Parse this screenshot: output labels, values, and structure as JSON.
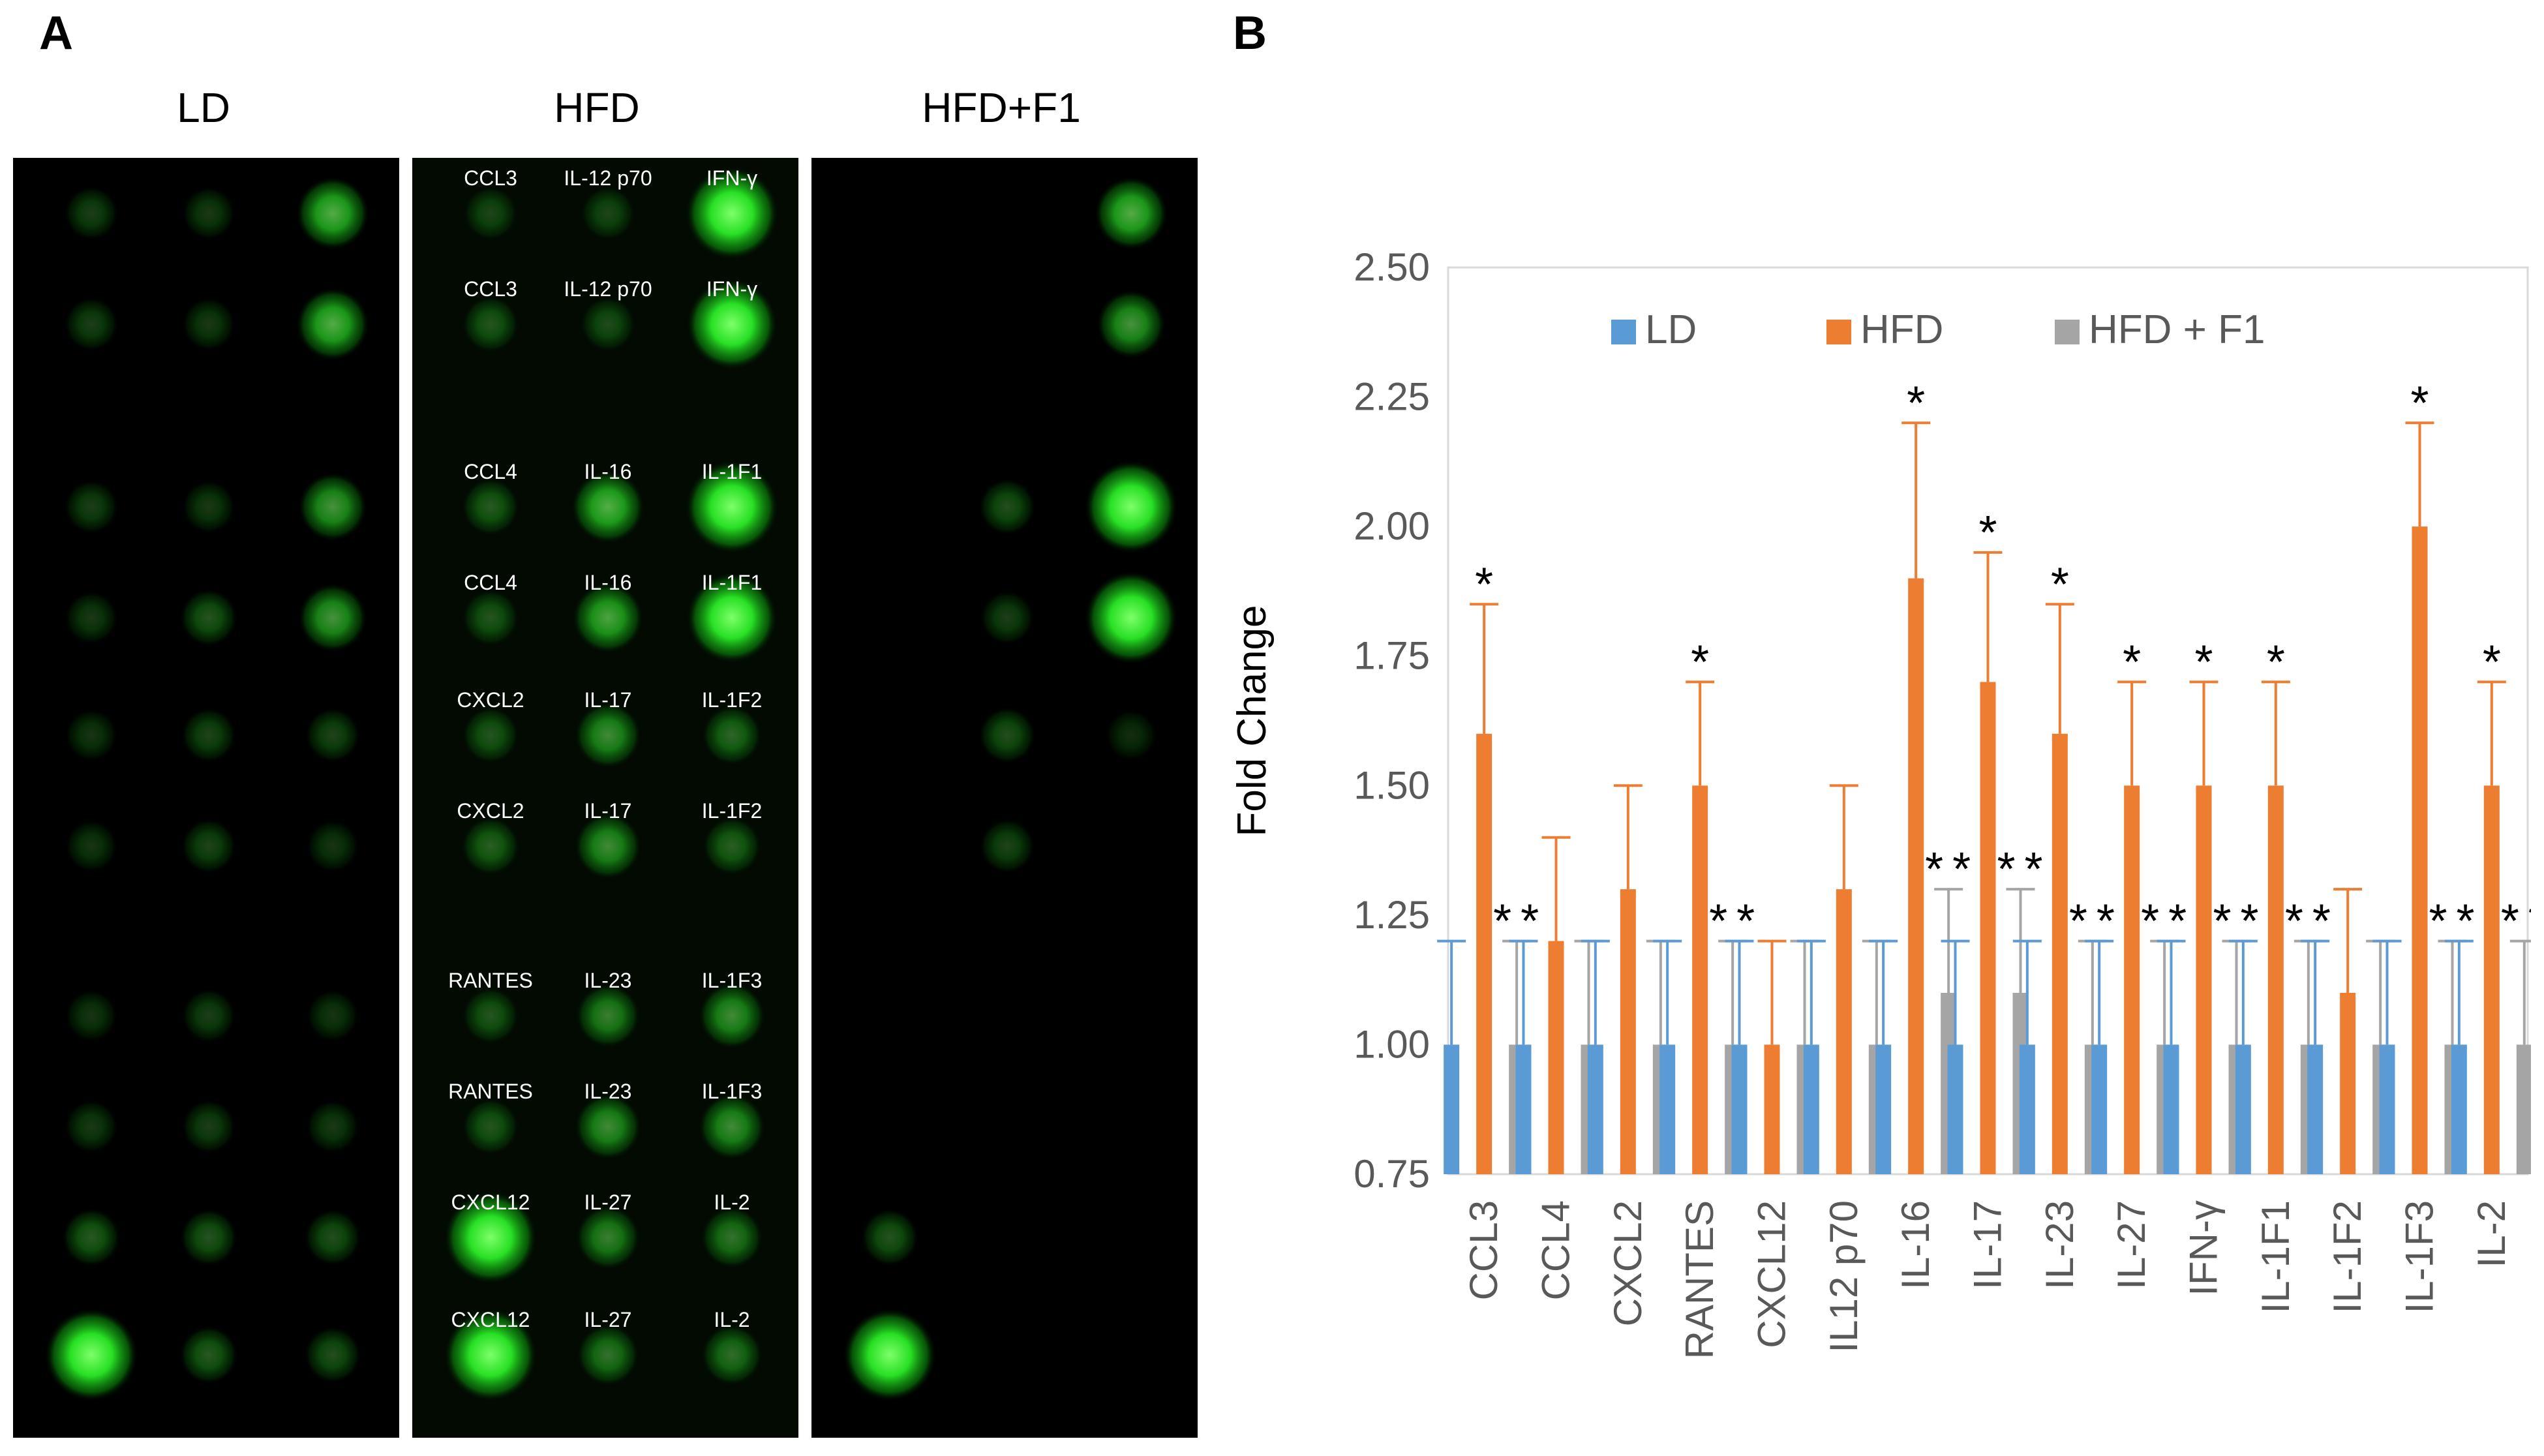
{
  "figure": {
    "panel_a_letter": "A",
    "panel_b_letter": "B"
  },
  "blots": [
    {
      "title": "LD",
      "dots": [
        [
          0.12,
          0.1,
          0.55
        ],
        [
          0.12,
          0.1,
          0.55
        ],
        [
          0.12,
          0.1,
          0.45
        ],
        [
          0.1,
          0.2,
          0.45
        ],
        [
          0.08,
          0.14,
          0.14
        ],
        [
          0.08,
          0.14,
          0.08
        ],
        [
          0.08,
          0.12,
          0.08
        ],
        [
          0.1,
          0.12,
          0.1
        ],
        [
          0.22,
          0.2,
          0.18
        ],
        [
          1.0,
          0.22,
          0.18
        ]
      ],
      "extra_dots": [
        [
          1.0,
          0.25,
          0.12
        ]
      ]
    },
    {
      "title": "HFD",
      "labels": [
        [
          "CCL3",
          "IL-12 p70",
          "IFN-γ"
        ],
        [
          "CCL3",
          "IL-12 p70",
          "IFN-γ"
        ],
        [
          "CCL4",
          "IL-16",
          "IL-1F1"
        ],
        [
          "CCL4",
          "IL-16",
          "IL-1F1"
        ],
        [
          "CXCL2",
          "IL-17",
          "IL-1F2"
        ],
        [
          "CXCL2",
          "IL-17",
          "IL-1F2"
        ],
        [
          "RANTES",
          "IL-23",
          "IL-1F3"
        ],
        [
          "RANTES",
          "IL-23",
          "IL-1F3"
        ],
        [
          "CXCL12",
          "IL-27",
          "IL-2"
        ],
        [
          "CXCL12",
          "IL-27",
          "IL-2"
        ]
      ],
      "dots": [
        [
          0.12,
          0.12,
          1.0
        ],
        [
          0.18,
          0.14,
          0.95
        ],
        [
          0.2,
          0.55,
          1.0
        ],
        [
          0.18,
          0.5,
          0.95
        ],
        [
          0.18,
          0.4,
          0.25
        ],
        [
          0.22,
          0.4,
          0.22
        ],
        [
          0.18,
          0.35,
          0.4
        ],
        [
          0.18,
          0.4,
          0.4
        ],
        [
          1.0,
          0.35,
          0.3
        ],
        [
          1.0,
          0.3,
          0.28
        ]
      ]
    },
    {
      "title": "HFD+F1",
      "dots": [
        [
          0.0,
          0.0,
          0.55
        ],
        [
          0.0,
          0.0,
          0.45
        ],
        [
          0.0,
          0.18,
          1.0
        ],
        [
          0.0,
          0.12,
          1.0
        ],
        [
          0.0,
          0.18,
          0.05
        ],
        [
          0.0,
          0.14,
          0.0
        ],
        [
          0.0,
          0.0,
          0.0
        ],
        [
          0.0,
          0.0,
          0.0
        ],
        [
          0.2,
          0.0,
          0.0
        ],
        [
          1.0,
          0.0,
          0.0
        ]
      ],
      "extra_dots": [
        [
          1.0,
          0.0,
          0.0
        ]
      ]
    }
  ],
  "chart_data": {
    "type": "bar",
    "title": "",
    "xlabel": "",
    "ylabel": "Fold Change",
    "ylim": [
      0.75,
      2.5
    ],
    "yticks": [
      "0.75",
      "1.00",
      "1.25",
      "1.50",
      "1.75",
      "2.00",
      "2.25",
      "2.50"
    ],
    "grid": false,
    "legend_position": "top",
    "categories": [
      "CCL3",
      "CCL4",
      "CXCL2",
      "RANTES",
      "CXCL12",
      "IL12 p70",
      "IL-16",
      "IL-17",
      "IL-23",
      "IL-27",
      "IFN-γ",
      "IL-1F1",
      "IL-1F2",
      "IL-1F3",
      "IL-2"
    ],
    "series": [
      {
        "name": "LD",
        "color": "#5b9bd5",
        "values": [
          1.0,
          1.0,
          1.0,
          1.0,
          1.0,
          1.0,
          1.0,
          1.0,
          1.0,
          1.0,
          1.0,
          1.0,
          1.0,
          1.0,
          1.0
        ],
        "error": [
          0.2,
          0.2,
          0.2,
          0.2,
          0.2,
          0.2,
          0.2,
          0.2,
          0.2,
          0.2,
          0.2,
          0.2,
          0.2,
          0.2,
          0.2
        ],
        "significant": [
          false,
          false,
          false,
          false,
          false,
          false,
          false,
          false,
          false,
          false,
          false,
          false,
          false,
          false,
          false
        ]
      },
      {
        "name": "HFD",
        "color": "#ed7d31",
        "values": [
          1.6,
          1.2,
          1.3,
          1.5,
          1.0,
          1.3,
          1.9,
          1.7,
          1.6,
          1.5,
          1.5,
          1.5,
          1.1,
          2.0,
          1.5
        ],
        "error": [
          0.25,
          0.2,
          0.2,
          0.2,
          0.2,
          0.2,
          0.3,
          0.25,
          0.25,
          0.2,
          0.2,
          0.2,
          0.2,
          0.2,
          0.2
        ],
        "significant": [
          true,
          false,
          false,
          true,
          false,
          false,
          true,
          true,
          true,
          true,
          true,
          true,
          false,
          true,
          true
        ]
      },
      {
        "name": "HFD + F1",
        "color": "#a5a5a5",
        "values": [
          1.0,
          1.0,
          1.0,
          1.0,
          1.0,
          1.0,
          1.1,
          1.1,
          1.0,
          1.0,
          1.0,
          1.0,
          1.0,
          1.0,
          1.0
        ],
        "error": [
          0.2,
          0.2,
          0.2,
          0.2,
          0.2,
          0.2,
          0.2,
          0.2,
          0.2,
          0.2,
          0.2,
          0.2,
          0.2,
          0.2,
          0.2
        ],
        "significant": [
          true,
          false,
          false,
          true,
          false,
          false,
          true,
          true,
          true,
          true,
          true,
          true,
          false,
          true,
          true
        ]
      }
    ],
    "significance_marker": "*"
  }
}
